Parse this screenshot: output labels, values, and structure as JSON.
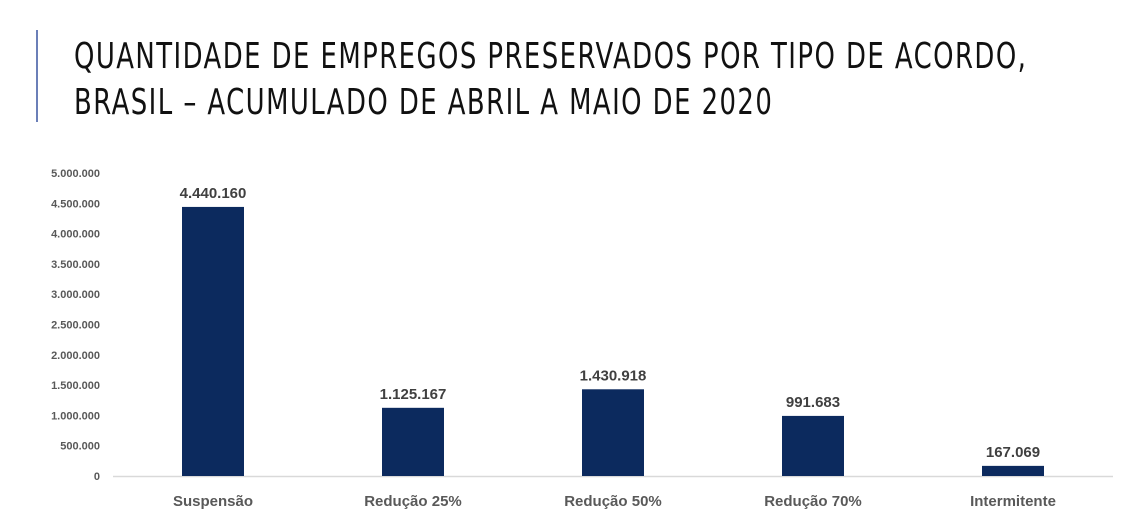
{
  "header": {
    "title_line1": "QUANTIDADE DE EMPREGOS PRESERVADOS POR TIPO DE ACORDO,",
    "title_line2": "BRASIL – ACUMULADO DE ABRIL A MAIO DE 2020"
  },
  "colors": {
    "bar": "#0c2a5e",
    "accent_rule": "#6b7fb8",
    "axis_line": "#d9d9d9"
  },
  "chart_data": {
    "type": "bar",
    "title": "QUANTIDADE DE EMPREGOS PRESERVADOS POR TIPO DE ACORDO, BRASIL – ACUMULADO DE ABRIL A MAIO DE 2020",
    "xlabel": "",
    "ylabel": "",
    "categories": [
      "Suspensão",
      "Redução 25%",
      "Redução 50%",
      "Redução 70%",
      "Intermitente"
    ],
    "values": [
      4440160,
      1125167,
      1430918,
      991683,
      167069
    ],
    "data_labels": [
      "4.440.160",
      "1.125.167",
      "1.430.918",
      "991.683",
      "167.069"
    ],
    "ylim": [
      0,
      5000000
    ],
    "yticks": [
      0,
      500000,
      1000000,
      1500000,
      2000000,
      2500000,
      3000000,
      3500000,
      4000000,
      4500000,
      5000000
    ],
    "ytick_labels": [
      "0",
      "500.000",
      "1.000.000",
      "1.500.000",
      "2.000.000",
      "2.500.000",
      "3.000.000",
      "3.500.000",
      "4.000.000",
      "4.500.000",
      "5.000.000"
    ],
    "grid": false,
    "legend": "none"
  }
}
